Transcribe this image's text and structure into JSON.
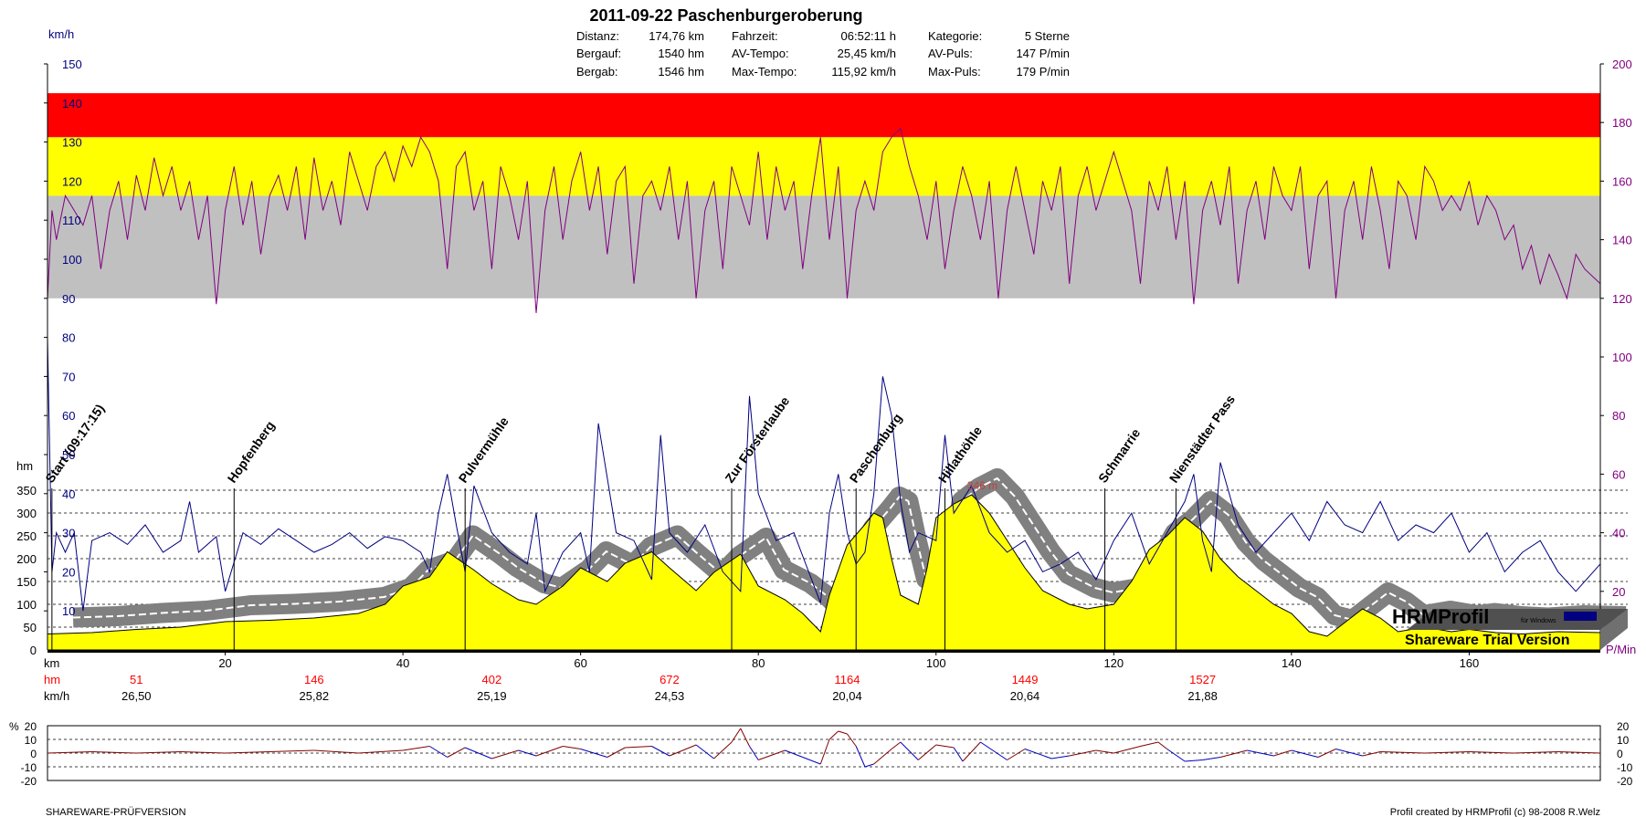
{
  "header": {
    "title": "2011-09-22 Paschenburgeroberung",
    "stats": [
      {
        "label": "Distanz:",
        "value": "174,76 km"
      },
      {
        "label": "Bergauf:",
        "value": "1540 hm"
      },
      {
        "label": "Bergab:",
        "value": "1546 hm"
      },
      {
        "label": "Fahrzeit:",
        "value": "06:52:11 h"
      },
      {
        "label": "AV-Tempo:",
        "value": "25,45 km/h"
      },
      {
        "label": "Max-Tempo:",
        "value": "115,92 km/h"
      },
      {
        "label": "Kategorie:",
        "value": "5 Sterne"
      },
      {
        "label": "AV-Puls:",
        "value": "147 P/min"
      },
      {
        "label": "Max-Puls:",
        "value": "179 P/min"
      }
    ]
  },
  "axes": {
    "speed_unit": "km/h",
    "speed_ticks": [
      "150",
      "140",
      "130",
      "120",
      "110",
      "100",
      "90",
      "80",
      "70",
      "60",
      "50",
      "40",
      "30",
      "20",
      "10"
    ],
    "pulse_ticks": [
      "200",
      "180",
      "160",
      "140",
      "120",
      "100",
      "80",
      "60",
      "40",
      "20"
    ],
    "pulse_unit": "P/Min",
    "alt_unit": "hm",
    "alt_ticks": [
      "350",
      "300",
      "250",
      "200",
      "150",
      "100",
      "50",
      "0"
    ],
    "km_unit": "km",
    "km_ticks": [
      "20",
      "40",
      "60",
      "80",
      "100",
      "120",
      "140",
      "160"
    ],
    "hm_row_label": "hm",
    "hm_row": [
      "51",
      "146",
      "402",
      "672",
      "1164",
      "1449",
      "1527"
    ],
    "kmh_row_label": "km/h",
    "kmh_row": [
      "26,50",
      "25,82",
      "25,19",
      "24,53",
      "20,04",
      "20,64",
      "21,88"
    ],
    "pct_unit": "%",
    "pct_ticks": [
      "20",
      "10",
      "0",
      "-10",
      "-20"
    ]
  },
  "waypoints": [
    {
      "name": "Start (09:17:15)",
      "km": 0.5
    },
    {
      "name": "Hopfenberg",
      "km": 21
    },
    {
      "name": "Pulvermühle",
      "km": 47
    },
    {
      "name": "Zur Försterlaube",
      "km": 77
    },
    {
      "name": "Paschenburg",
      "km": 91
    },
    {
      "name": "Hillathöhle",
      "km": 101
    },
    {
      "name": "Schmarrie",
      "km": 119
    },
    {
      "name": "Nienstädter Pass",
      "km": 127
    }
  ],
  "annotation": {
    "text": "346 m",
    "km": 103.5,
    "alt": 346
  },
  "branding": {
    "logo": "HRMProfil",
    "logo_sub": "für Windows",
    "trial": "Shareware Trial  Version",
    "footer_left": "SHAREWARE-PRÜFVERSION",
    "footer_right": "Profil created by HRMProfil (c) 98-2008 R.Welz"
  },
  "colors": {
    "zone_red": "#ff0000",
    "zone_yellow": "#ffff00",
    "zone_grey": "#c0c0c0",
    "altitude_fill": "#ffff00",
    "altitude_line": "#000000",
    "shadow": "#808080",
    "speed_line": "#000080",
    "pulse_line": "#800080",
    "slope_up": "#800000",
    "slope_down": "#0000c0",
    "hm_text": "#ff0000",
    "pulse_axis": "#800080",
    "speed_axis": "#000080"
  },
  "chart_data": {
    "type": "line",
    "x_label": "km",
    "x_range": [
      0,
      174.76
    ],
    "pulse_zones_bpm": [
      {
        "from": 120,
        "to": 155,
        "color": "grey"
      },
      {
        "from": 155,
        "to": 175,
        "color": "yellow"
      },
      {
        "from": 175,
        "to": 190,
        "color": "red"
      }
    ],
    "altitude": {
      "unit": "hm",
      "ylim": [
        0,
        350
      ],
      "km": [
        0,
        5,
        10,
        15,
        20,
        25,
        30,
        35,
        38,
        40,
        43,
        45,
        48,
        50,
        53,
        55,
        58,
        60,
        63,
        65,
        68,
        70,
        73,
        75,
        78,
        80,
        83,
        85,
        87,
        88,
        90,
        92,
        93,
        94,
        95,
        96,
        98,
        99,
        100,
        102,
        104,
        106,
        108,
        110,
        112,
        115,
        117,
        120,
        122,
        124,
        126,
        128,
        130,
        132,
        134,
        136,
        138,
        140,
        142,
        144,
        146,
        148,
        150,
        152,
        155,
        158,
        160,
        163,
        166,
        170,
        174.76
      ],
      "alt": [
        35,
        38,
        45,
        50,
        62,
        65,
        70,
        80,
        100,
        140,
        160,
        215,
        175,
        145,
        110,
        100,
        140,
        180,
        150,
        190,
        215,
        180,
        130,
        170,
        210,
        140,
        110,
        80,
        40,
        120,
        230,
        275,
        300,
        290,
        200,
        120,
        100,
        180,
        290,
        320,
        340,
        300,
        240,
        180,
        130,
        100,
        90,
        100,
        150,
        220,
        250,
        290,
        260,
        200,
        160,
        130,
        100,
        80,
        40,
        30,
        60,
        90,
        70,
        40,
        50,
        40,
        45,
        38,
        35,
        40,
        38
      ]
    },
    "series": [
      {
        "name": "km/h",
        "unit": "km/h",
        "ylim": [
          0,
          150
        ],
        "km": [
          0,
          0.5,
          1,
          2,
          3,
          4,
          5,
          7,
          9,
          11,
          13,
          15,
          16,
          17,
          19,
          20,
          22,
          24,
          26,
          28,
          30,
          32,
          34,
          36,
          38,
          40,
          42,
          43,
          44,
          45,
          46,
          47,
          48,
          50,
          52,
          54,
          55,
          56,
          58,
          60,
          61,
          62,
          64,
          66,
          68,
          69,
          70,
          72,
          74,
          76,
          78,
          79,
          80,
          82,
          84,
          86,
          87,
          88,
          89,
          90,
          91,
          92,
          93,
          94,
          95,
          96,
          97,
          98,
          100,
          101,
          102,
          104,
          106,
          108,
          110,
          112,
          114,
          116,
          118,
          120,
          122,
          124,
          126,
          128,
          129,
          130,
          131,
          132,
          134,
          136,
          138,
          140,
          142,
          144,
          146,
          148,
          150,
          152,
          154,
          156,
          158,
          160,
          162,
          164,
          166,
          168,
          170,
          172,
          174.76
        ],
        "values": [
          80,
          20,
          30,
          25,
          30,
          10,
          28,
          30,
          27,
          32,
          25,
          28,
          38,
          25,
          29,
          15,
          30,
          27,
          31,
          28,
          25,
          27,
          30,
          26,
          29,
          28,
          25,
          20,
          35,
          45,
          32,
          20,
          42,
          30,
          25,
          22,
          35,
          15,
          25,
          30,
          20,
          58,
          30,
          28,
          18,
          55,
          30,
          25,
          32,
          20,
          15,
          65,
          40,
          28,
          30,
          18,
          12,
          35,
          45,
          30,
          22,
          25,
          40,
          70,
          60,
          38,
          25,
          30,
          28,
          55,
          35,
          42,
          30,
          25,
          28,
          20,
          22,
          25,
          18,
          28,
          35,
          22,
          30,
          38,
          45,
          28,
          20,
          48,
          32,
          25,
          30,
          35,
          28,
          38,
          32,
          30,
          38,
          28,
          32,
          30,
          35,
          25,
          30,
          20,
          25,
          28,
          20,
          15,
          22
        ]
      },
      {
        "name": "P/min",
        "unit": "P/min",
        "ylim": [
          0,
          200
        ],
        "km": [
          0,
          0.5,
          1,
          2,
          3,
          4,
          5,
          6,
          7,
          8,
          9,
          10,
          11,
          12,
          13,
          14,
          15,
          16,
          17,
          18,
          19,
          20,
          21,
          22,
          23,
          24,
          25,
          26,
          27,
          28,
          29,
          30,
          31,
          32,
          33,
          34,
          35,
          36,
          37,
          38,
          39,
          40,
          41,
          42,
          43,
          44,
          45,
          46,
          47,
          48,
          49,
          50,
          51,
          52,
          53,
          54,
          55,
          56,
          57,
          58,
          59,
          60,
          61,
          62,
          63,
          64,
          65,
          66,
          67,
          68,
          69,
          70,
          71,
          72,
          73,
          74,
          75,
          76,
          77,
          78,
          79,
          80,
          81,
          82,
          83,
          84,
          85,
          86,
          87,
          88,
          89,
          90,
          91,
          92,
          93,
          94,
          95,
          96,
          97,
          98,
          99,
          100,
          101,
          102,
          103,
          104,
          105,
          106,
          107,
          108,
          109,
          110,
          111,
          112,
          113,
          114,
          115,
          116,
          117,
          118,
          119,
          120,
          121,
          122,
          123,
          124,
          125,
          126,
          127,
          128,
          129,
          130,
          131,
          132,
          133,
          134,
          135,
          136,
          137,
          138,
          139,
          140,
          141,
          142,
          143,
          144,
          145,
          146,
          147,
          148,
          149,
          150,
          151,
          152,
          153,
          154,
          155,
          156,
          157,
          158,
          159,
          160,
          161,
          162,
          163,
          164,
          165,
          166,
          167,
          168,
          169,
          170,
          171,
          172,
          173,
          174.76
        ],
        "values": [
          120,
          150,
          140,
          155,
          150,
          145,
          155,
          130,
          150,
          160,
          140,
          162,
          150,
          168,
          155,
          165,
          150,
          160,
          140,
          155,
          118,
          150,
          165,
          145,
          160,
          135,
          155,
          162,
          150,
          165,
          140,
          168,
          150,
          160,
          145,
          170,
          160,
          150,
          165,
          170,
          160,
          172,
          165,
          175,
          170,
          160,
          130,
          165,
          170,
          150,
          160,
          130,
          165,
          155,
          140,
          160,
          115,
          150,
          165,
          140,
          160,
          170,
          150,
          165,
          135,
          160,
          165,
          125,
          155,
          160,
          150,
          165,
          140,
          160,
          120,
          150,
          160,
          130,
          165,
          155,
          145,
          170,
          140,
          165,
          150,
          160,
          130,
          155,
          175,
          140,
          165,
          120,
          150,
          160,
          150,
          170,
          175,
          178,
          165,
          155,
          140,
          160,
          130,
          150,
          165,
          155,
          140,
          160,
          120,
          150,
          165,
          150,
          135,
          160,
          150,
          165,
          125,
          155,
          165,
          150,
          160,
          170,
          160,
          150,
          125,
          160,
          150,
          165,
          140,
          160,
          118,
          150,
          160,
          145,
          165,
          125,
          150,
          160,
          140,
          165,
          155,
          150,
          165,
          130,
          155,
          160,
          120,
          150,
          160,
          140,
          165,
          150,
          130,
          160,
          155,
          140,
          165,
          160,
          150,
          155,
          150,
          160,
          145,
          155,
          150,
          140,
          145,
          130,
          138,
          125,
          135,
          128,
          120,
          135,
          130,
          125
        ]
      }
    ],
    "slope": {
      "unit": "%",
      "ylim": [
        -20,
        20
      ],
      "km": [
        0,
        5,
        10,
        15,
        20,
        25,
        30,
        35,
        40,
        43,
        45,
        47,
        50,
        53,
        55,
        58,
        60,
        63,
        65,
        68,
        70,
        73,
        75,
        77,
        78,
        79,
        80,
        83,
        85,
        87,
        88,
        89,
        90,
        91,
        92,
        93,
        95,
        96,
        98,
        100,
        102,
        103,
        105,
        108,
        110,
        113,
        115,
        118,
        120,
        123,
        125,
        126,
        128,
        130,
        132,
        135,
        138,
        140,
        143,
        145,
        148,
        150,
        155,
        160,
        165,
        170,
        174.76
      ],
      "values": [
        0,
        1,
        0,
        1,
        0,
        1,
        2,
        0,
        2,
        5,
        -3,
        4,
        -4,
        2,
        -2,
        5,
        3,
        -3,
        4,
        5,
        -2,
        6,
        -4,
        8,
        18,
        5,
        -5,
        2,
        -3,
        -8,
        10,
        16,
        14,
        5,
        -10,
        -8,
        3,
        8,
        -5,
        6,
        4,
        -6,
        8,
        -5,
        3,
        -4,
        -2,
        2,
        0,
        5,
        8,
        3,
        -6,
        -5,
        -3,
        2,
        -2,
        2,
        -3,
        3,
        -2,
        1,
        0,
        1,
        0,
        1,
        0
      ]
    }
  }
}
